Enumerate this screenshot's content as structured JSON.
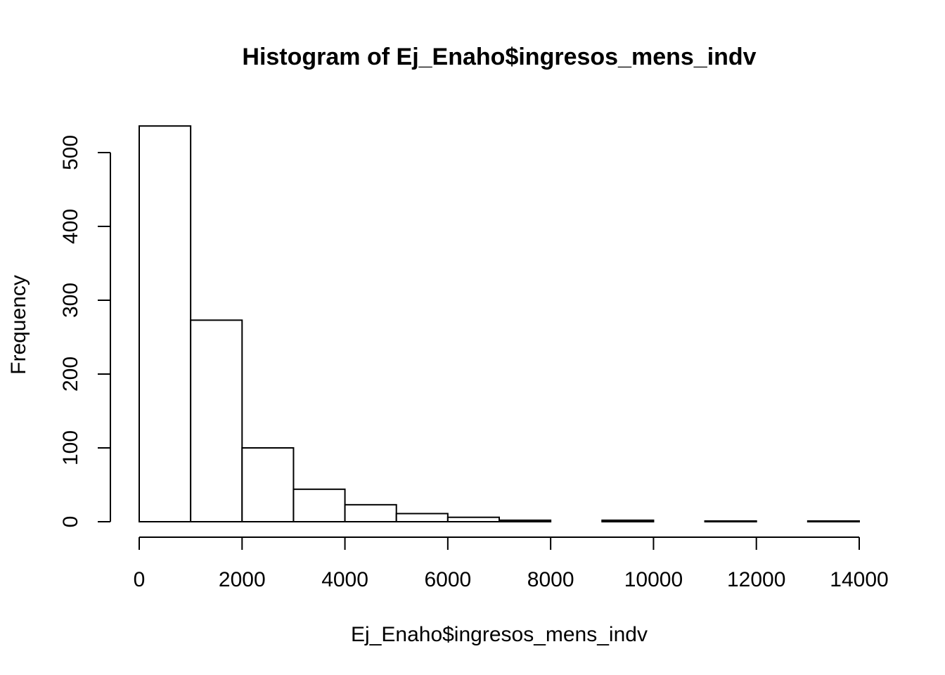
{
  "chart_data": {
    "type": "bar",
    "subtype": "histogram",
    "title": "Histogram of Ej_Enaho$ingresos_mens_indv",
    "xlabel": "Ej_Enaho$ingresos_mens_indv",
    "ylabel": "Frequency",
    "bin_edges": [
      0,
      1000,
      2000,
      3000,
      4000,
      5000,
      6000,
      7000,
      8000,
      9000,
      10000,
      11000,
      12000,
      13000,
      14000
    ],
    "values": [
      536,
      273,
      100,
      44,
      23,
      11,
      6,
      2,
      0,
      2,
      0,
      1,
      0,
      1
    ],
    "xlim": [
      0,
      14000
    ],
    "ylim": [
      0,
      500
    ],
    "x_ticks": [
      0,
      2000,
      4000,
      6000,
      8000,
      10000,
      12000,
      14000
    ],
    "y_ticks": [
      0,
      100,
      200,
      300,
      400,
      500
    ],
    "grid": false,
    "fill_color": "#ffffff",
    "edge_color": "#000000"
  }
}
